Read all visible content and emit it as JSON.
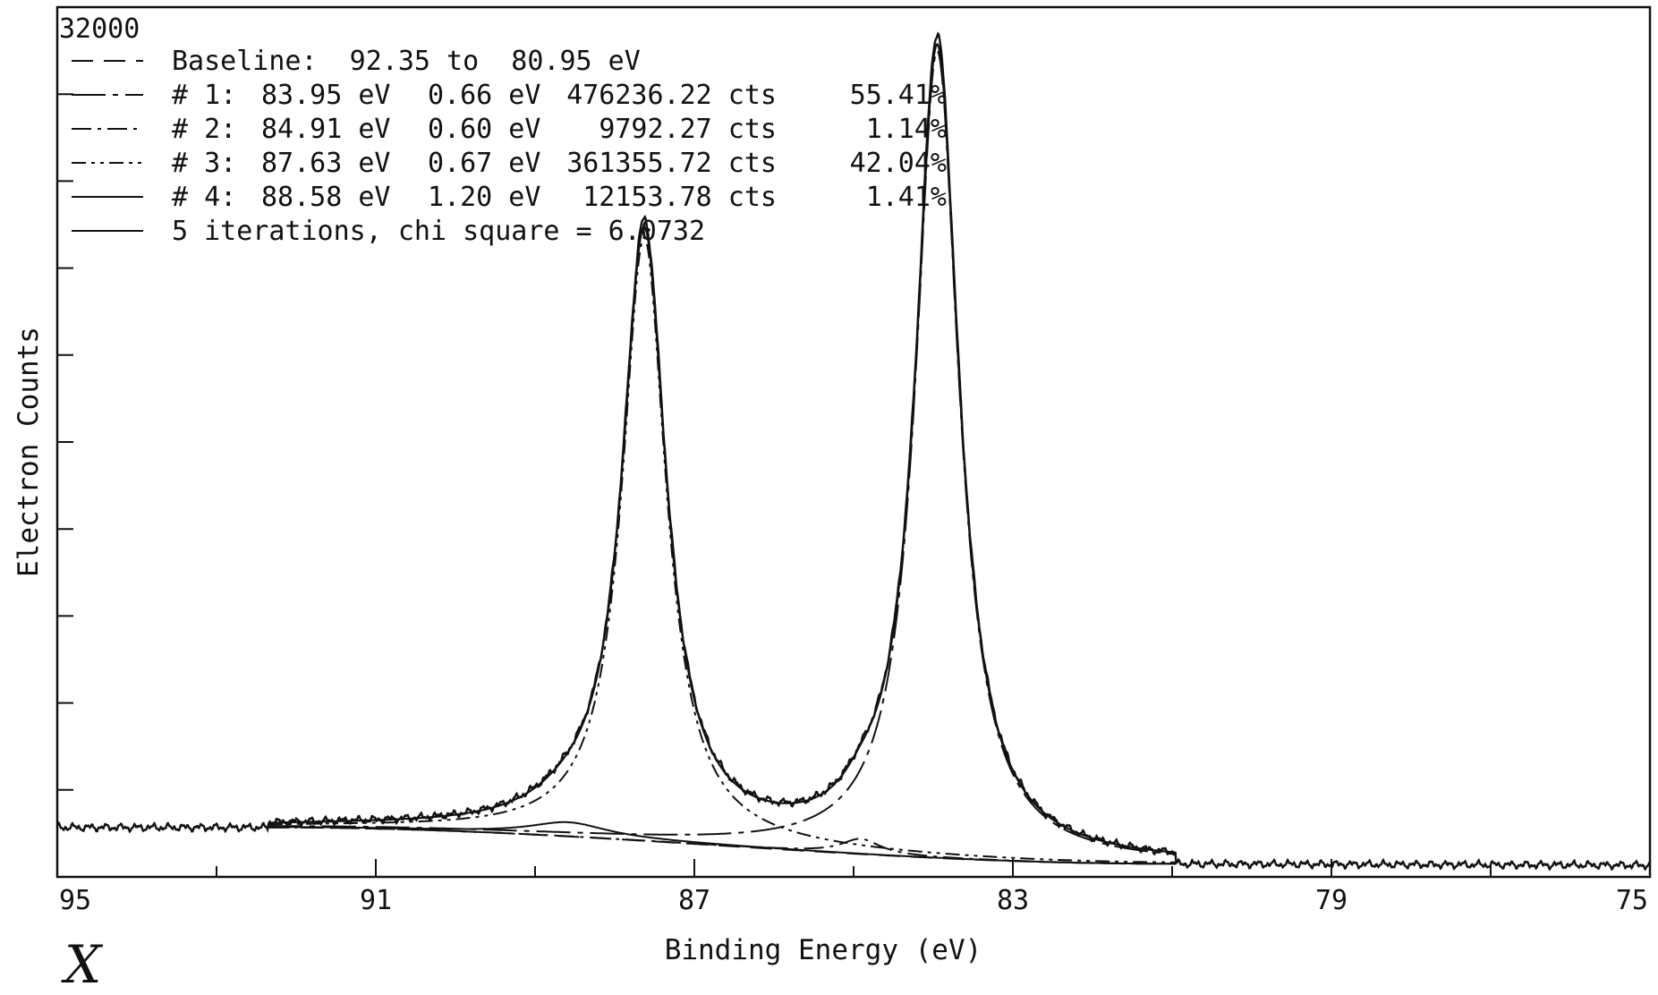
{
  "chart_data": {
    "type": "line",
    "title": "",
    "xlabel": "Binding Energy (eV)",
    "ylabel": "Electron Counts",
    "xlim": [
      95,
      75
    ],
    "x_reversed": true,
    "ylim": [
      0,
      32000
    ],
    "y_max_label": "32000",
    "grid": false,
    "legend_position": "top-left",
    "x_ticks": [
      {
        "value": 95,
        "label": "95"
      },
      {
        "value": 91,
        "label": "91"
      },
      {
        "value": 87,
        "label": "87"
      },
      {
        "value": 83,
        "label": "83"
      },
      {
        "value": 79,
        "label": "79"
      },
      {
        "value": 75,
        "label": "75"
      }
    ],
    "legend": [
      {
        "dash": "baseline",
        "text": "Baseline:  92.35 to  80.95 eV"
      },
      {
        "dash": "peak1",
        "num": "# 1:",
        "pos": "83.95 eV",
        "fwhm": "0.66 eV",
        "area": "476236.22 cts",
        "pct": "55.41%"
      },
      {
        "dash": "peak2",
        "num": "# 2:",
        "pos": "84.91 eV",
        "fwhm": "0.60 eV",
        "area": "9792.27 cts",
        "pct": "1.14%"
      },
      {
        "dash": "peak3",
        "num": "# 3:",
        "pos": "87.63 eV",
        "fwhm": "0.67 eV",
        "area": "361355.72 cts",
        "pct": "42.04%"
      },
      {
        "dash": "peak4",
        "num": "# 4:",
        "pos": "88.58 eV",
        "fwhm": "1.20 eV",
        "area": "12153.78 cts",
        "pct": "1.41%"
      },
      {
        "dash": "fit",
        "text": "5 iterations, chi square = 6.0732"
      }
    ],
    "baseline": {
      "x_start": 92.35,
      "x_end": 80.95,
      "y_start": 1820,
      "y_end": 480
    },
    "peaks": [
      {
        "id": 1,
        "center": 83.95,
        "fwhm": 0.66,
        "height": 29700
      },
      {
        "id": 2,
        "center": 84.91,
        "fwhm": 0.6,
        "height": 560
      },
      {
        "id": 3,
        "center": 87.63,
        "fwhm": 0.67,
        "height": 22200
      },
      {
        "id": 4,
        "center": 88.58,
        "fwhm": 1.2,
        "height": 520
      }
    ],
    "background_outside_fit": {
      "x_left": 95,
      "y_left": 1820,
      "x_right": 75,
      "y_right": 430
    },
    "annotation": "X"
  }
}
